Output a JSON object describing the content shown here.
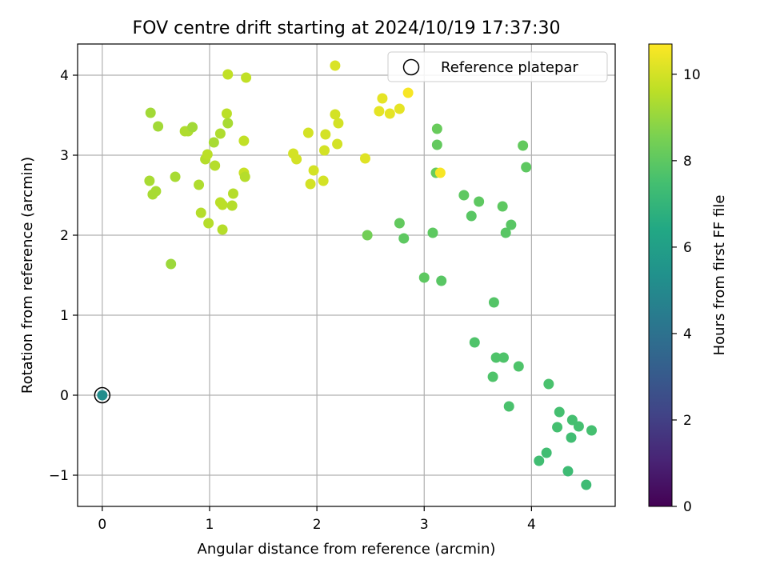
{
  "chart_data": {
    "type": "scatter",
    "title": "FOV centre drift starting at 2024/10/19 17:37:30",
    "xlabel": "Angular distance from reference (arcmin)",
    "ylabel": "Rotation from reference (arcmin)",
    "xlim": [
      -0.23,
      4.78
    ],
    "ylim": [
      -1.39,
      4.39
    ],
    "xticks": [
      0,
      1,
      2,
      3,
      4
    ],
    "yticks": [
      -1,
      0,
      1,
      2,
      3,
      4
    ],
    "xtick_labels": [
      "0",
      "1",
      "2",
      "3",
      "4"
    ],
    "ytick_labels": [
      "−1",
      "0",
      "1",
      "2",
      "3",
      "4"
    ],
    "grid": true,
    "legend": {
      "position": "top-right",
      "label": "Reference platepar"
    },
    "colorbar": {
      "label": "Hours from first FF file",
      "range": [
        0,
        10.7
      ],
      "ticks": [
        0,
        2,
        4,
        6,
        8,
        10
      ],
      "tick_labels": [
        "0",
        "2",
        "4",
        "6",
        "8",
        "10"
      ],
      "colormap": "viridis"
    },
    "reference_point": {
      "x": 0,
      "y": 0
    },
    "points": [
      {
        "x": 0.0,
        "y": 0.0,
        "c": 5.2
      },
      {
        "x": 0.44,
        "y": 2.68,
        "c": 9.3
      },
      {
        "x": 0.45,
        "y": 3.53,
        "c": 9.2
      },
      {
        "x": 0.47,
        "y": 2.51,
        "c": 9.3
      },
      {
        "x": 0.5,
        "y": 2.55,
        "c": 9.3
      },
      {
        "x": 0.52,
        "y": 3.36,
        "c": 9.2
      },
      {
        "x": 0.64,
        "y": 1.64,
        "c": 9.1
      },
      {
        "x": 0.68,
        "y": 2.73,
        "c": 9.3
      },
      {
        "x": 0.77,
        "y": 3.3,
        "c": 9.4
      },
      {
        "x": 0.8,
        "y": 3.3,
        "c": 9.4
      },
      {
        "x": 0.84,
        "y": 3.35,
        "c": 9.2
      },
      {
        "x": 0.9,
        "y": 2.63,
        "c": 9.4
      },
      {
        "x": 0.92,
        "y": 2.28,
        "c": 9.5
      },
      {
        "x": 0.96,
        "y": 2.95,
        "c": 9.5
      },
      {
        "x": 0.98,
        "y": 3.01,
        "c": 9.6
      },
      {
        "x": 0.99,
        "y": 2.15,
        "c": 9.5
      },
      {
        "x": 1.04,
        "y": 3.16,
        "c": 9.3
      },
      {
        "x": 1.05,
        "y": 2.87,
        "c": 9.5
      },
      {
        "x": 1.1,
        "y": 2.41,
        "c": 9.6
      },
      {
        "x": 1.1,
        "y": 3.27,
        "c": 9.4
      },
      {
        "x": 1.12,
        "y": 2.38,
        "c": 9.6
      },
      {
        "x": 1.12,
        "y": 2.07,
        "c": 9.5
      },
      {
        "x": 1.16,
        "y": 3.52,
        "c": 9.6
      },
      {
        "x": 1.17,
        "y": 3.4,
        "c": 9.3
      },
      {
        "x": 1.17,
        "y": 4.01,
        "c": 9.7
      },
      {
        "x": 1.21,
        "y": 2.37,
        "c": 9.5
      },
      {
        "x": 1.22,
        "y": 2.52,
        "c": 9.5
      },
      {
        "x": 1.32,
        "y": 3.18,
        "c": 9.7
      },
      {
        "x": 1.32,
        "y": 2.78,
        "c": 9.8
      },
      {
        "x": 1.33,
        "y": 2.73,
        "c": 9.5
      },
      {
        "x": 1.34,
        "y": 3.97,
        "c": 9.7
      },
      {
        "x": 1.78,
        "y": 3.02,
        "c": 10.0
      },
      {
        "x": 1.81,
        "y": 2.95,
        "c": 10.0
      },
      {
        "x": 1.92,
        "y": 3.28,
        "c": 10.0
      },
      {
        "x": 1.94,
        "y": 2.64,
        "c": 10.0
      },
      {
        "x": 1.97,
        "y": 2.81,
        "c": 10.0
      },
      {
        "x": 2.06,
        "y": 2.68,
        "c": 10.0
      },
      {
        "x": 2.07,
        "y": 3.06,
        "c": 10.0
      },
      {
        "x": 2.08,
        "y": 3.26,
        "c": 10.0
      },
      {
        "x": 2.17,
        "y": 4.12,
        "c": 10.1
      },
      {
        "x": 2.17,
        "y": 3.51,
        "c": 10.0
      },
      {
        "x": 2.19,
        "y": 3.14,
        "c": 10.0
      },
      {
        "x": 2.2,
        "y": 3.4,
        "c": 10.0
      },
      {
        "x": 2.45,
        "y": 2.96,
        "c": 10.2
      },
      {
        "x": 2.47,
        "y": 2.0,
        "c": 8.4
      },
      {
        "x": 2.58,
        "y": 3.55,
        "c": 10.3
      },
      {
        "x": 2.61,
        "y": 3.71,
        "c": 10.3
      },
      {
        "x": 2.68,
        "y": 3.52,
        "c": 10.3
      },
      {
        "x": 2.77,
        "y": 3.58,
        "c": 10.3
      },
      {
        "x": 2.77,
        "y": 2.15,
        "c": 8.1
      },
      {
        "x": 2.81,
        "y": 1.96,
        "c": 8.0
      },
      {
        "x": 2.85,
        "y": 3.78,
        "c": 10.6
      },
      {
        "x": 3.0,
        "y": 1.47,
        "c": 8.0
      },
      {
        "x": 3.08,
        "y": 2.03,
        "c": 8.0
      },
      {
        "x": 3.11,
        "y": 2.78,
        "c": 8.2
      },
      {
        "x": 3.12,
        "y": 3.33,
        "c": 8.2
      },
      {
        "x": 3.12,
        "y": 3.13,
        "c": 8.1
      },
      {
        "x": 3.15,
        "y": 2.78,
        "c": 10.6
      },
      {
        "x": 3.16,
        "y": 1.43,
        "c": 7.9
      },
      {
        "x": 3.37,
        "y": 2.5,
        "c": 8.0
      },
      {
        "x": 3.44,
        "y": 2.24,
        "c": 7.9
      },
      {
        "x": 3.47,
        "y": 0.66,
        "c": 7.7
      },
      {
        "x": 3.51,
        "y": 2.42,
        "c": 8.0
      },
      {
        "x": 3.64,
        "y": 0.23,
        "c": 7.7
      },
      {
        "x": 3.65,
        "y": 1.16,
        "c": 7.8
      },
      {
        "x": 3.67,
        "y": 0.47,
        "c": 7.7
      },
      {
        "x": 3.73,
        "y": 2.36,
        "c": 8.0
      },
      {
        "x": 3.74,
        "y": 0.47,
        "c": 7.7
      },
      {
        "x": 3.76,
        "y": 2.03,
        "c": 7.9
      },
      {
        "x": 3.79,
        "y": -0.14,
        "c": 7.6
      },
      {
        "x": 3.81,
        "y": 2.13,
        "c": 7.9
      },
      {
        "x": 3.88,
        "y": 0.36,
        "c": 7.7
      },
      {
        "x": 3.92,
        "y": 3.12,
        "c": 8.1
      },
      {
        "x": 3.95,
        "y": 2.85,
        "c": 8.0
      },
      {
        "x": 4.07,
        "y": -0.82,
        "c": 7.4
      },
      {
        "x": 4.14,
        "y": -0.72,
        "c": 7.4
      },
      {
        "x": 4.16,
        "y": 0.14,
        "c": 7.6
      },
      {
        "x": 4.24,
        "y": -0.4,
        "c": 7.5
      },
      {
        "x": 4.26,
        "y": -0.21,
        "c": 7.5
      },
      {
        "x": 4.34,
        "y": -0.95,
        "c": 7.3
      },
      {
        "x": 4.37,
        "y": -0.53,
        "c": 7.4
      },
      {
        "x": 4.38,
        "y": -0.31,
        "c": 7.5
      },
      {
        "x": 4.44,
        "y": -0.39,
        "c": 7.5
      },
      {
        "x": 4.51,
        "y": -1.12,
        "c": 7.3
      },
      {
        "x": 4.56,
        "y": -0.44,
        "c": 7.5
      }
    ]
  }
}
